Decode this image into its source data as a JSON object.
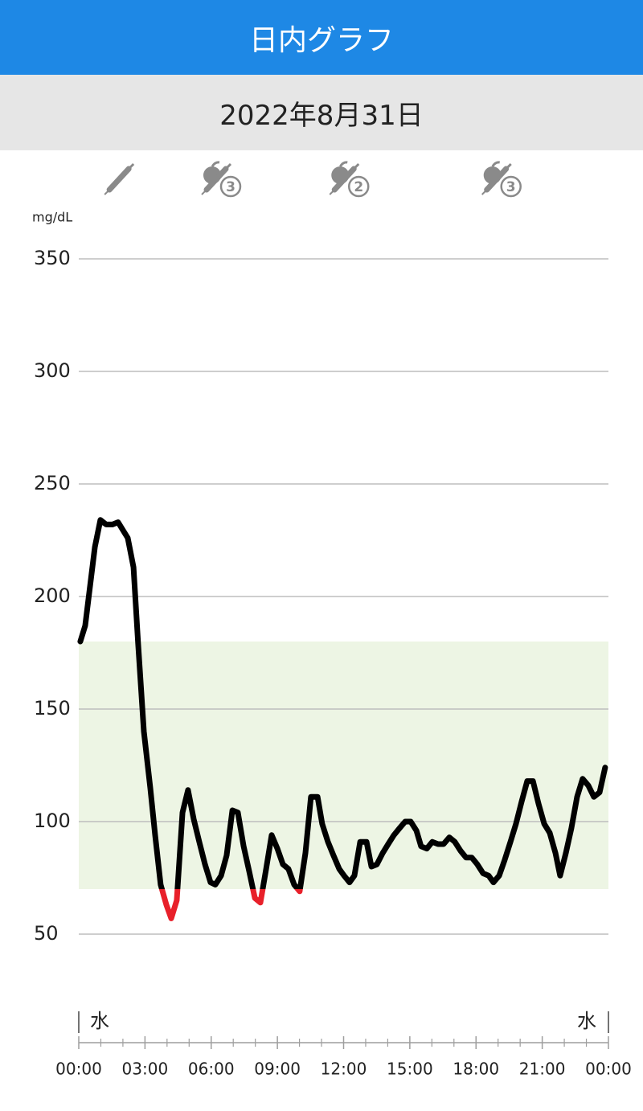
{
  "header": {
    "title": "日内グラフ",
    "date": "2022年8月31日"
  },
  "chart_data": {
    "type": "line",
    "y_label": "mg/dL",
    "x": [
      0.07,
      0.29,
      0.73,
      0.98,
      1.24,
      1.53,
      1.78,
      2.22,
      2.48,
      2.69,
      2.95,
      3.24,
      3.46,
      3.71,
      3.97,
      4.19,
      4.44,
      4.7,
      4.95,
      5.21,
      5.46,
      5.72,
      5.97,
      6.19,
      6.45,
      6.7,
      6.96,
      7.21,
      7.47,
      7.72,
      7.98,
      8.23,
      8.49,
      8.74,
      9.0,
      9.25,
      9.5,
      9.76,
      10.01,
      10.27,
      10.52,
      10.82,
      11.03,
      11.29,
      11.54,
      11.8,
      12.02,
      12.27,
      12.49,
      12.75,
      13.04,
      13.26,
      13.51,
      13.77,
      14.02,
      14.28,
      14.53,
      14.79,
      15.04,
      15.3,
      15.51,
      15.77,
      16.02,
      16.28,
      16.53,
      16.79,
      17.04,
      17.3,
      17.55,
      17.81,
      18.06,
      18.32,
      18.57,
      18.79,
      19.05,
      19.3,
      19.56,
      19.81,
      20.07,
      20.32,
      20.58,
      20.83,
      21.09,
      21.34,
      21.6,
      21.81,
      22.07,
      22.32,
      22.58,
      22.83,
      23.09,
      23.34,
      23.6,
      23.85
    ],
    "series": [
      {
        "color": "#000000",
        "low_color": "#e8202a",
        "values": [
          180,
          187,
          222,
          234,
          232,
          232,
          233,
          226,
          213,
          179,
          140,
          115,
          94,
          72,
          63,
          57,
          65,
          104,
          114,
          101,
          91,
          81,
          73,
          72,
          76,
          85,
          105,
          104,
          89,
          78,
          66,
          64,
          79,
          94,
          88,
          81,
          79,
          72,
          69,
          86,
          111,
          111,
          99,
          91,
          85,
          79,
          76,
          73,
          76,
          91,
          91,
          80,
          81,
          86,
          90,
          94,
          97,
          100,
          100,
          96,
          89,
          88,
          91,
          90,
          90,
          93,
          91,
          87,
          84,
          84,
          81,
          77,
          76,
          73,
          76,
          83,
          91,
          99,
          109,
          118,
          118,
          108,
          99,
          95,
          86,
          76,
          86,
          97,
          111,
          119,
          116,
          111,
          113,
          124
        ]
      }
    ],
    "target_range": [
      70,
      180
    ],
    "target_color": "#edf5e4",
    "xlim": [
      0,
      24
    ],
    "xticks": [
      {
        "value": 0,
        "label": "00:00"
      },
      {
        "value": 3,
        "label": "03:00"
      },
      {
        "value": 6,
        "label": "06:00"
      },
      {
        "value": 9,
        "label": "09:00"
      },
      {
        "value": 12,
        "label": "12:00"
      },
      {
        "value": 15,
        "label": "15:00"
      },
      {
        "value": 18,
        "label": "18:00"
      },
      {
        "value": 21,
        "label": "21:00"
      },
      {
        "value": 24,
        "label": "00:00"
      }
    ],
    "xticks_minor": [
      1,
      2,
      4,
      5,
      7,
      8,
      10,
      11,
      13,
      14,
      16,
      17,
      19,
      20,
      22,
      23
    ],
    "ylim": [
      50,
      350
    ],
    "yticks": [
      50,
      100,
      150,
      200,
      250,
      300,
      350
    ],
    "grid": true,
    "day_labels": [
      "水",
      "水"
    ],
    "events": [
      {
        "x": 1.9,
        "kind": "insulin"
      },
      {
        "x": 6.3,
        "kind": "meal",
        "count": 3
      },
      {
        "x": 12.1,
        "kind": "meal",
        "count": 2
      },
      {
        "x": 19.0,
        "kind": "meal",
        "count": 3
      }
    ]
  }
}
